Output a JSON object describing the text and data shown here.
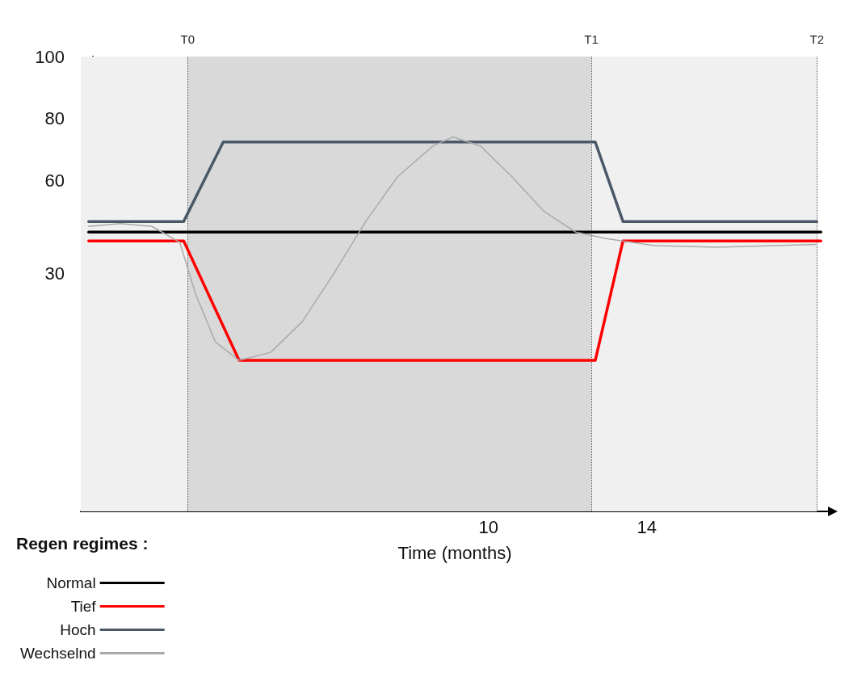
{
  "chart_data": {
    "type": "line",
    "xlabel": "Time (months)",
    "legend_title": "Regen regimes :",
    "legend": "bottom left",
    "grid": false,
    "marker": "none",
    "xlim": [
      -0.3,
      18.6
    ],
    "xticks": [
      10,
      14
    ],
    "ylim": [
      -47,
      100
    ],
    "yticks": [
      30,
      60,
      80,
      100
    ],
    "series": [
      {
        "name": "Normal",
        "color": "#000000",
        "x": [
          -0.1,
          18.4
        ],
        "values": [
          43.3,
          43.3
        ]
      },
      {
        "name": "Tief",
        "color": "#ff0000",
        "x": [
          -0.1,
          2.3,
          3.7,
          12.7,
          13.4,
          18.4
        ],
        "values": [
          40.4,
          40.4,
          1.8,
          1.8,
          40.4,
          40.4
        ]
      },
      {
        "name": "Hoch",
        "color": "#4a5868",
        "x": [
          -0.1,
          2.3,
          3.3,
          12.7,
          13.4,
          18.3
        ],
        "values": [
          46.7,
          46.7,
          72.4,
          72.4,
          46.7,
          46.7
        ]
      },
      {
        "name": "Wechselnd",
        "color": "#aaaaaa",
        "x": [
          -0.1,
          0.7,
          1.5,
          2.2,
          2.6,
          3.1,
          3.7,
          4.5,
          5.3,
          6.1,
          6.9,
          7.7,
          8.6,
          9.1,
          9.8,
          10.6,
          11.4,
          12.2,
          13.0,
          14.2,
          15.8,
          18.3
        ],
        "values": [
          45.1,
          46.0,
          45.1,
          40.0,
          23.3,
          7.8,
          1.8,
          4.4,
          14.4,
          30.0,
          46.7,
          61.1,
          71.1,
          74.0,
          71.1,
          61.1,
          50.0,
          43.3,
          41.1,
          38.9,
          38.4,
          39.3
        ]
      }
    ],
    "bands": [
      {
        "axis": "x",
        "from": -0.3,
        "to": 2.4,
        "color": "#f0f0f0"
      },
      {
        "axis": "x",
        "from": 2.4,
        "to": 12.6,
        "color": "#d9d9d9"
      },
      {
        "axis": "x",
        "from": 12.6,
        "to": 18.3,
        "color": "#f0f0f0"
      }
    ],
    "ref_lines": [
      {
        "axis": "x",
        "value": 2.4,
        "label": "T0",
        "line_style": "dotted",
        "color": "#555555"
      },
      {
        "axis": "x",
        "value": 12.6,
        "label": "T1",
        "line_style": "dotted",
        "color": "#555555"
      },
      {
        "axis": "x",
        "value": 18.3,
        "label": "T2",
        "line_style": "dotted",
        "color": "#555555"
      }
    ]
  }
}
